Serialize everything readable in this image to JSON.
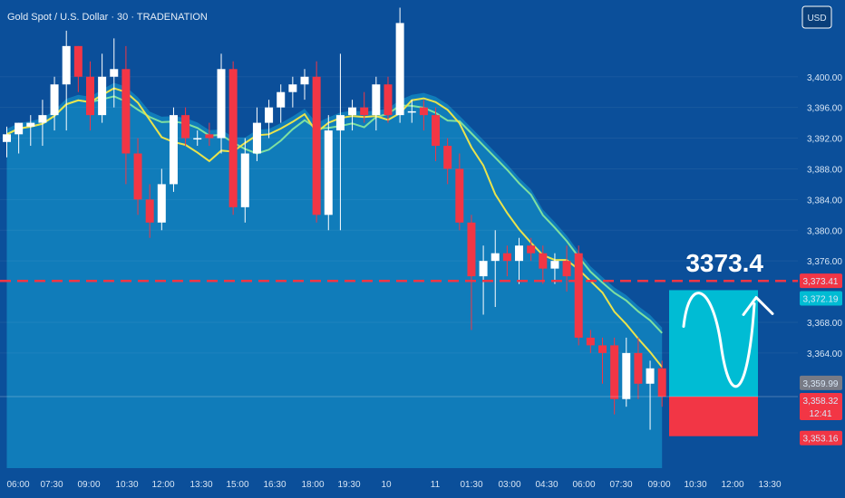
{
  "header": {
    "title": "Gold Spot / U.S. Dollar · 30 · TRADENATION",
    "currency": "USD"
  },
  "chart_data": {
    "type": "candlestick",
    "ylim": [
      3349,
      3410
    ],
    "y_ticks": [
      3400,
      3396,
      3392,
      3388,
      3384,
      3380,
      3376,
      3368,
      3364
    ],
    "x_ticks": [
      "06:00",
      "07:30",
      "09:00",
      "10:30",
      "12:00",
      "13:30",
      "15:00",
      "16:30",
      "18:00",
      "19:30",
      "10",
      "11",
      "01:30",
      "03:00",
      "04:30",
      "06:00",
      "07:30",
      "09:00",
      "10:30",
      "12:00",
      "13:30"
    ],
    "candles": [
      {
        "o": 3391.5,
        "h": 3393.5,
        "l": 3389.5,
        "c": 3392.5
      },
      {
        "o": 3392.5,
        "h": 3394,
        "l": 3390,
        "c": 3394
      },
      {
        "o": 3393.5,
        "h": 3395,
        "l": 3391,
        "c": 3394
      },
      {
        "o": 3394,
        "h": 3397,
        "l": 3391,
        "c": 3395
      },
      {
        "o": 3395,
        "h": 3400,
        "l": 3393,
        "c": 3399
      },
      {
        "o": 3399,
        "h": 3406,
        "l": 3393,
        "c": 3404
      },
      {
        "o": 3404,
        "h": 3404,
        "l": 3398,
        "c": 3400
      },
      {
        "o": 3400,
        "h": 3402,
        "l": 3393,
        "c": 3395
      },
      {
        "o": 3395,
        "h": 3403,
        "l": 3394,
        "c": 3400
      },
      {
        "o": 3400,
        "h": 3405,
        "l": 3396,
        "c": 3401
      },
      {
        "o": 3401,
        "h": 3404,
        "l": 3386,
        "c": 3390
      },
      {
        "o": 3390,
        "h": 3392,
        "l": 3382,
        "c": 3384
      },
      {
        "o": 3384,
        "h": 3386,
        "l": 3379,
        "c": 3381
      },
      {
        "o": 3381,
        "h": 3388,
        "l": 3380,
        "c": 3386
      },
      {
        "o": 3386,
        "h": 3396,
        "l": 3385,
        "c": 3395
      },
      {
        "o": 3395,
        "h": 3396,
        "l": 3391,
        "c": 3392
      },
      {
        "o": 3392,
        "h": 3393,
        "l": 3391,
        "c": 3392
      },
      {
        "o": 3392.5,
        "h": 3394,
        "l": 3391,
        "c": 3392
      },
      {
        "o": 3392,
        "h": 3403,
        "l": 3390,
        "c": 3401
      },
      {
        "o": 3401,
        "h": 3402,
        "l": 3382,
        "c": 3383
      },
      {
        "o": 3383,
        "h": 3392,
        "l": 3381,
        "c": 3390
      },
      {
        "o": 3390,
        "h": 3396,
        "l": 3389,
        "c": 3394
      },
      {
        "o": 3394,
        "h": 3397,
        "l": 3392,
        "c": 3396
      },
      {
        "o": 3396,
        "h": 3399,
        "l": 3394,
        "c": 3398
      },
      {
        "o": 3398,
        "h": 3400,
        "l": 3396,
        "c": 3399
      },
      {
        "o": 3399,
        "h": 3401,
        "l": 3397,
        "c": 3400
      },
      {
        "o": 3400,
        "h": 3402,
        "l": 3381,
        "c": 3382
      },
      {
        "o": 3382,
        "h": 3395,
        "l": 3380,
        "c": 3393
      },
      {
        "o": 3393,
        "h": 3403,
        "l": 3380,
        "c": 3395
      },
      {
        "o": 3395,
        "h": 3397,
        "l": 3393,
        "c": 3396
      },
      {
        "o": 3396,
        "h": 3398,
        "l": 3394,
        "c": 3395
      },
      {
        "o": 3395,
        "h": 3400,
        "l": 3393,
        "c": 3399
      },
      {
        "o": 3399,
        "h": 3400,
        "l": 3394,
        "c": 3395
      },
      {
        "o": 3395,
        "h": 3409,
        "l": 3394,
        "c": 3407
      },
      {
        "o": 3395.5,
        "h": 3397,
        "l": 3394,
        "c": 3395.5
      },
      {
        "o": 3396,
        "h": 3397,
        "l": 3393,
        "c": 3395
      },
      {
        "o": 3395,
        "h": 3396,
        "l": 3389,
        "c": 3391
      },
      {
        "o": 3391,
        "h": 3392,
        "l": 3386,
        "c": 3388
      },
      {
        "o": 3388,
        "h": 3390,
        "l": 3380,
        "c": 3381
      },
      {
        "o": 3381,
        "h": 3382,
        "l": 3367,
        "c": 3374
      },
      {
        "o": 3374,
        "h": 3378,
        "l": 3369,
        "c": 3376
      },
      {
        "o": 3376,
        "h": 3380,
        "l": 3370,
        "c": 3377
      },
      {
        "o": 3377,
        "h": 3378,
        "l": 3374,
        "c": 3376
      },
      {
        "o": 3376,
        "h": 3379,
        "l": 3373,
        "c": 3378
      },
      {
        "o": 3378,
        "h": 3379,
        "l": 3376,
        "c": 3377
      },
      {
        "o": 3377,
        "h": 3378,
        "l": 3373,
        "c": 3375
      },
      {
        "o": 3375,
        "h": 3377,
        "l": 3373,
        "c": 3376
      },
      {
        "o": 3376,
        "h": 3378,
        "l": 3372,
        "c": 3374
      },
      {
        "o": 3377,
        "h": 3378,
        "l": 3365,
        "c": 3366
      },
      {
        "o": 3366,
        "h": 3367,
        "l": 3364,
        "c": 3365
      },
      {
        "o": 3365,
        "h": 3366,
        "l": 3360,
        "c": 3364
      },
      {
        "o": 3365,
        "h": 3366,
        "l": 3356,
        "c": 3358
      },
      {
        "o": 3358,
        "h": 3366,
        "l": 3357,
        "c": 3364
      },
      {
        "o": 3364,
        "h": 3366,
        "l": 3358,
        "c": 3360
      },
      {
        "o": 3360,
        "h": 3363,
        "l": 3354,
        "c": 3362
      },
      {
        "o": 3362,
        "h": 3363,
        "l": 3357,
        "c": 3358.3
      }
    ],
    "current_price": 3358.32,
    "countdown": "12:41",
    "target_level": 3373.4,
    "target_label": "3373.4",
    "price_labels": [
      {
        "value": 3373.41,
        "text": "3,373.41",
        "color": "#f23645"
      },
      {
        "value": 3372.19,
        "text": "3,372.19",
        "color": "#00bcd4"
      },
      {
        "value": 3359.99,
        "text": "3,359.99",
        "color": "#787b86"
      },
      {
        "value": 3358.32,
        "text": "3,358.32",
        "color": "#f23645"
      },
      {
        "value": 3353.16,
        "text": "3,353.16",
        "color": "#f23645"
      }
    ],
    "position": {
      "entry": 3358.32,
      "target": 3372.19,
      "stop": 3353.16
    },
    "colors": {
      "up": "#ffffff",
      "down": "#f23645",
      "ma_fast": "#e9e34c",
      "ma_slow": "#7fe0a0",
      "band": "#16a3d6",
      "target_line": "#f23645",
      "bg": "#0b4f9a",
      "profit": "#00bcd4",
      "loss": "#f23645"
    }
  }
}
